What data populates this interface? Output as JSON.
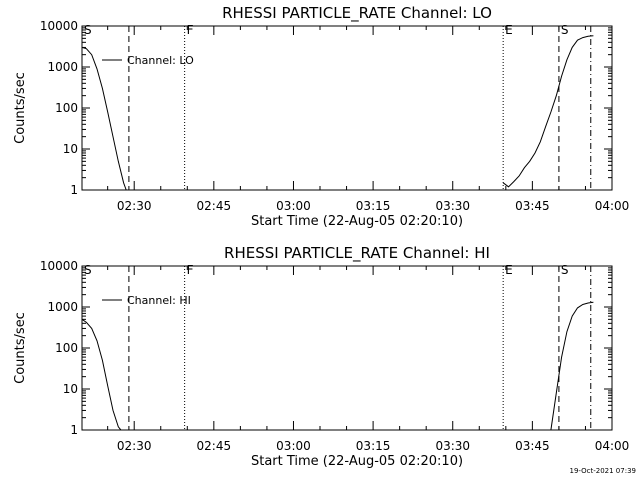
{
  "chart_data": [
    {
      "type": "line",
      "title": "RHESSI PARTICLE_RATE Channel: LO",
      "xlabel": "Start Time (22-Aug-05 02:20:10)",
      "ylabel": "Counts/sec",
      "yscale": "log",
      "ylim": [
        1,
        10000
      ],
      "xlim": [
        "02:20:10",
        "04:00"
      ],
      "x_ticks": [
        "02:30",
        "02:45",
        "03:00",
        "03:15",
        "03:30",
        "03:45",
        "04:00"
      ],
      "y_ticks": [
        "1",
        "10",
        "100",
        "1000",
        "10000"
      ],
      "legend": {
        "label": "Channel: LO",
        "placement": "top-left"
      },
      "markers": [
        {
          "label": "S",
          "time": "02:20:10",
          "style": "dotted"
        },
        {
          "label": "",
          "time": "02:29:00",
          "style": "dashed"
        },
        {
          "label": "F",
          "time": "02:39:30",
          "style": "dotted"
        },
        {
          "label": "E",
          "time": "03:39:30",
          "style": "dotted"
        },
        {
          "label": "S",
          "time": "03:50:00",
          "style": "dashed"
        },
        {
          "label": "",
          "time": "03:56:00",
          "style": "dashdot"
        }
      ],
      "series": [
        {
          "segments": [
            {
              "x": [
                "02:20:10",
                "02:21:00",
                "02:22:00",
                "02:23:00",
                "02:24:00",
                "02:25:00",
                "02:26:00",
                "02:27:00",
                "02:28:00",
                "02:28:30"
              ],
              "y": [
                3000,
                2800,
                2000,
                900,
                300,
                80,
                20,
                5,
                1.5,
                1
              ]
            },
            {
              "x": [
                "03:39:30",
                "03:40:30",
                "03:41:30",
                "03:42:30",
                "03:43:30",
                "03:44:30",
                "03:45:30",
                "03:46:30",
                "03:47:30",
                "03:48:30",
                "03:49:30",
                "03:50:30",
                "03:51:30",
                "03:52:30",
                "03:53:30",
                "03:54:30",
                "03:55:30",
                "03:56:30"
              ],
              "y": [
                1.5,
                1.2,
                1.6,
                2.2,
                3.5,
                5,
                8,
                15,
                35,
                80,
                200,
                600,
                1500,
                3000,
                4500,
                5200,
                5600,
                5800
              ]
            }
          ]
        }
      ]
    },
    {
      "type": "line",
      "title": "RHESSI PARTICLE_RATE Channel: HI",
      "xlabel": "Start Time (22-Aug-05 02:20:10)",
      "ylabel": "Counts/sec",
      "yscale": "log",
      "ylim": [
        1,
        10000
      ],
      "xlim": [
        "02:20:10",
        "04:00"
      ],
      "x_ticks": [
        "02:30",
        "02:45",
        "03:00",
        "03:15",
        "03:30",
        "03:45",
        "04:00"
      ],
      "y_ticks": [
        "1",
        "10",
        "100",
        "1000",
        "10000"
      ],
      "legend": {
        "label": "Channel: HI",
        "placement": "top-left"
      },
      "markers": [
        {
          "label": "S",
          "time": "02:20:10",
          "style": "dotted"
        },
        {
          "label": "",
          "time": "02:29:00",
          "style": "dashed"
        },
        {
          "label": "F",
          "time": "02:39:30",
          "style": "dotted"
        },
        {
          "label": "E",
          "time": "03:39:30",
          "style": "dotted"
        },
        {
          "label": "S",
          "time": "03:50:00",
          "style": "dashed"
        },
        {
          "label": "",
          "time": "03:56:00",
          "style": "dashdot"
        }
      ],
      "series": [
        {
          "segments": [
            {
              "x": [
                "02:20:10",
                "02:21:00",
                "02:22:00",
                "02:23:00",
                "02:24:00",
                "02:25:00",
                "02:26:00",
                "02:27:00",
                "02:27:30"
              ],
              "y": [
                500,
                420,
                300,
                150,
                50,
                12,
                3,
                1.2,
                1
              ]
            },
            {
              "x": [
                "03:48:30",
                "03:49:30",
                "03:50:30",
                "03:51:30",
                "03:52:30",
                "03:53:30",
                "03:54:30",
                "03:55:30",
                "03:56:30"
              ],
              "y": [
                1,
                8,
                60,
                250,
                600,
                950,
                1150,
                1250,
                1300
              ]
            }
          ]
        }
      ]
    }
  ],
  "footer": {
    "timestamp": "19-Oct-2021 07:39"
  }
}
